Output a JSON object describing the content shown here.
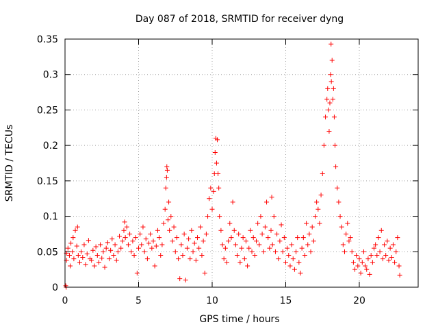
{
  "chart_data": {
    "type": "scatter",
    "title": "Day 087 of 2018, SRMTID for receiver dyng",
    "xlabel": "GPS time / hours",
    "ylabel": "SRMTID / TECUs",
    "xlim": [
      0,
      24
    ],
    "ylim": [
      0,
      0.35
    ],
    "x_ticks": [
      0,
      5,
      10,
      15,
      20
    ],
    "x_tick_labels": [
      "0",
      "5",
      "10",
      "15",
      "20"
    ],
    "y_ticks": [
      0,
      0.05,
      0.1,
      0.15,
      0.2,
      0.25,
      0.3,
      0.35
    ],
    "y_tick_labels": [
      "0",
      "0.05",
      "0.1",
      "0.15",
      "0.2",
      "0.25",
      "0.3",
      "0.35"
    ],
    "grid": true,
    "marker": "+",
    "color": "#ff0000",
    "series": [
      {
        "name": "SRMTID",
        "points": [
          [
            0.05,
            0.002
          ],
          [
            0.08,
            0.0
          ],
          [
            0.1,
            0.038
          ],
          [
            0.1,
            0.048
          ],
          [
            0.2,
            0.055
          ],
          [
            0.3,
            0.045
          ],
          [
            0.35,
            0.03
          ],
          [
            0.4,
            0.062
          ],
          [
            0.5,
            0.05
          ],
          [
            0.55,
            0.07
          ],
          [
            0.6,
            0.04
          ],
          [
            0.7,
            0.08
          ],
          [
            0.8,
            0.058
          ],
          [
            0.85,
            0.085
          ],
          [
            0.9,
            0.045
          ],
          [
            1.0,
            0.035
          ],
          [
            1.1,
            0.05
          ],
          [
            1.2,
            0.042
          ],
          [
            1.3,
            0.06
          ],
          [
            1.4,
            0.032
          ],
          [
            1.5,
            0.047
          ],
          [
            1.6,
            0.066
          ],
          [
            1.7,
            0.04
          ],
          [
            1.8,
            0.038
          ],
          [
            1.9,
            0.052
          ],
          [
            2.0,
            0.03
          ],
          [
            2.1,
            0.057
          ],
          [
            2.2,
            0.045
          ],
          [
            2.3,
            0.035
          ],
          [
            2.4,
            0.06
          ],
          [
            2.5,
            0.041
          ],
          [
            2.6,
            0.05
          ],
          [
            2.7,
            0.028
          ],
          [
            2.8,
            0.055
          ],
          [
            2.9,
            0.063
          ],
          [
            3.0,
            0.04
          ],
          [
            3.1,
            0.052
          ],
          [
            3.2,
            0.068
          ],
          [
            3.3,
            0.045
          ],
          [
            3.4,
            0.06
          ],
          [
            3.5,
            0.038
          ],
          [
            3.6,
            0.05
          ],
          [
            3.7,
            0.072
          ],
          [
            3.8,
            0.055
          ],
          [
            3.9,
            0.065
          ],
          [
            4.0,
            0.08
          ],
          [
            4.05,
            0.092
          ],
          [
            4.1,
            0.07
          ],
          [
            4.2,
            0.085
          ],
          [
            4.3,
            0.06
          ],
          [
            4.4,
            0.075
          ],
          [
            4.5,
            0.05
          ],
          [
            4.6,
            0.065
          ],
          [
            4.7,
            0.045
          ],
          [
            4.8,
            0.07
          ],
          [
            4.9,
            0.02
          ],
          [
            5.0,
            0.055
          ],
          [
            5.1,
            0.075
          ],
          [
            5.2,
            0.06
          ],
          [
            5.3,
            0.085
          ],
          [
            5.4,
            0.05
          ],
          [
            5.5,
            0.068
          ],
          [
            5.6,
            0.04
          ],
          [
            5.7,
            0.062
          ],
          [
            5.8,
            0.075
          ],
          [
            5.9,
            0.055
          ],
          [
            6.0,
            0.065
          ],
          [
            6.1,
            0.03
          ],
          [
            6.2,
            0.058
          ],
          [
            6.3,
            0.08
          ],
          [
            6.4,
            0.07
          ],
          [
            6.5,
            0.045
          ],
          [
            6.6,
            0.06
          ],
          [
            6.7,
            0.09
          ],
          [
            6.8,
            0.11
          ],
          [
            6.85,
            0.14
          ],
          [
            6.9,
            0.155
          ],
          [
            6.92,
            0.17
          ],
          [
            6.95,
            0.165
          ],
          [
            7.0,
            0.095
          ],
          [
            7.05,
            0.12
          ],
          [
            7.1,
            0.08
          ],
          [
            7.2,
            0.1
          ],
          [
            7.3,
            0.065
          ],
          [
            7.4,
            0.085
          ],
          [
            7.5,
            0.05
          ],
          [
            7.6,
            0.07
          ],
          [
            7.7,
            0.04
          ],
          [
            7.8,
            0.012
          ],
          [
            7.9,
            0.06
          ],
          [
            8.0,
            0.045
          ],
          [
            8.1,
            0.075
          ],
          [
            8.2,
            0.01
          ],
          [
            8.3,
            0.055
          ],
          [
            8.4,
            0.068
          ],
          [
            8.5,
            0.04
          ],
          [
            8.6,
            0.08
          ],
          [
            8.7,
            0.05
          ],
          [
            8.8,
            0.062
          ],
          [
            8.9,
            0.038
          ],
          [
            9.0,
            0.07
          ],
          [
            9.1,
            0.055
          ],
          [
            9.2,
            0.085
          ],
          [
            9.3,
            0.045
          ],
          [
            9.4,
            0.065
          ],
          [
            9.5,
            0.02
          ],
          [
            9.6,
            0.075
          ],
          [
            9.7,
            0.1
          ],
          [
            9.8,
            0.125
          ],
          [
            9.9,
            0.14
          ],
          [
            10.0,
            0.11
          ],
          [
            10.1,
            0.135
          ],
          [
            10.15,
            0.16
          ],
          [
            10.2,
            0.19
          ],
          [
            10.25,
            0.21
          ],
          [
            10.3,
            0.175
          ],
          [
            10.35,
            0.208
          ],
          [
            10.4,
            0.16
          ],
          [
            10.45,
            0.14
          ],
          [
            10.5,
            0.1
          ],
          [
            10.6,
            0.08
          ],
          [
            10.7,
            0.06
          ],
          [
            10.8,
            0.04
          ],
          [
            10.9,
            0.055
          ],
          [
            11.0,
            0.035
          ],
          [
            11.1,
            0.065
          ],
          [
            11.2,
            0.09
          ],
          [
            11.3,
            0.07
          ],
          [
            11.4,
            0.12
          ],
          [
            11.5,
            0.08
          ],
          [
            11.6,
            0.06
          ],
          [
            11.7,
            0.045
          ],
          [
            11.8,
            0.075
          ],
          [
            11.9,
            0.035
          ],
          [
            12.0,
            0.055
          ],
          [
            12.1,
            0.07
          ],
          [
            12.2,
            0.04
          ],
          [
            12.3,
            0.065
          ],
          [
            12.4,
            0.03
          ],
          [
            12.5,
            0.055
          ],
          [
            12.6,
            0.08
          ],
          [
            12.7,
            0.05
          ],
          [
            12.8,
            0.07
          ],
          [
            12.9,
            0.045
          ],
          [
            13.0,
            0.065
          ],
          [
            13.1,
            0.09
          ],
          [
            13.2,
            0.06
          ],
          [
            13.3,
            0.1
          ],
          [
            13.4,
            0.075
          ],
          [
            13.5,
            0.05
          ],
          [
            13.6,
            0.085
          ],
          [
            13.7,
            0.12
          ],
          [
            13.8,
            0.07
          ],
          [
            13.9,
            0.055
          ],
          [
            14.0,
            0.08
          ],
          [
            14.05,
            0.127
          ],
          [
            14.1,
            0.06
          ],
          [
            14.2,
            0.1
          ],
          [
            14.3,
            0.05
          ],
          [
            14.4,
            0.075
          ],
          [
            14.5,
            0.04
          ],
          [
            14.6,
            0.065
          ],
          [
            14.7,
            0.088
          ],
          [
            14.8,
            0.05
          ],
          [
            14.9,
            0.07
          ],
          [
            15.0,
            0.035
          ],
          [
            15.1,
            0.055
          ],
          [
            15.2,
            0.045
          ],
          [
            15.3,
            0.03
          ],
          [
            15.4,
            0.06
          ],
          [
            15.5,
            0.04
          ],
          [
            15.6,
            0.025
          ],
          [
            15.7,
            0.05
          ],
          [
            15.8,
            0.07
          ],
          [
            15.9,
            0.035
          ],
          [
            16.0,
            0.02
          ],
          [
            16.1,
            0.055
          ],
          [
            16.2,
            0.07
          ],
          [
            16.3,
            0.045
          ],
          [
            16.4,
            0.09
          ],
          [
            16.5,
            0.06
          ],
          [
            16.6,
            0.075
          ],
          [
            16.7,
            0.05
          ],
          [
            16.8,
            0.085
          ],
          [
            16.9,
            0.065
          ],
          [
            17.0,
            0.1
          ],
          [
            17.1,
            0.12
          ],
          [
            17.2,
            0.11
          ],
          [
            17.3,
            0.09
          ],
          [
            17.4,
            0.13
          ],
          [
            17.5,
            0.16
          ],
          [
            17.6,
            0.2
          ],
          [
            17.7,
            0.24
          ],
          [
            17.8,
            0.265
          ],
          [
            17.85,
            0.28
          ],
          [
            17.9,
            0.25
          ],
          [
            17.95,
            0.22
          ],
          [
            18.0,
            0.26
          ],
          [
            18.05,
            0.3
          ],
          [
            18.08,
            0.343
          ],
          [
            18.1,
            0.29
          ],
          [
            18.15,
            0.32
          ],
          [
            18.2,
            0.265
          ],
          [
            18.25,
            0.28
          ],
          [
            18.3,
            0.24
          ],
          [
            18.35,
            0.2
          ],
          [
            18.4,
            0.17
          ],
          [
            18.5,
            0.14
          ],
          [
            18.6,
            0.12
          ],
          [
            18.7,
            0.1
          ],
          [
            18.8,
            0.085
          ],
          [
            18.9,
            0.06
          ],
          [
            19.0,
            0.05
          ],
          [
            19.1,
            0.075
          ],
          [
            19.2,
            0.09
          ],
          [
            19.3,
            0.065
          ],
          [
            19.4,
            0.07
          ],
          [
            19.5,
            0.05
          ],
          [
            19.6,
            0.035
          ],
          [
            19.7,
            0.025
          ],
          [
            19.8,
            0.045
          ],
          [
            19.9,
            0.03
          ],
          [
            20.0,
            0.04
          ],
          [
            20.1,
            0.02
          ],
          [
            20.2,
            0.035
          ],
          [
            20.3,
            0.05
          ],
          [
            20.4,
            0.03
          ],
          [
            20.5,
            0.025
          ],
          [
            20.6,
            0.04
          ],
          [
            20.7,
            0.018
          ],
          [
            20.8,
            0.045
          ],
          [
            20.9,
            0.035
          ],
          [
            21.0,
            0.055
          ],
          [
            21.1,
            0.06
          ],
          [
            21.2,
            0.045
          ],
          [
            21.3,
            0.07
          ],
          [
            21.4,
            0.05
          ],
          [
            21.5,
            0.08
          ],
          [
            21.6,
            0.04
          ],
          [
            21.7,
            0.06
          ],
          [
            21.8,
            0.045
          ],
          [
            21.9,
            0.065
          ],
          [
            22.0,
            0.038
          ],
          [
            22.1,
            0.055
          ],
          [
            22.2,
            0.042
          ],
          [
            22.3,
            0.06
          ],
          [
            22.4,
            0.035
          ],
          [
            22.5,
            0.05
          ],
          [
            22.6,
            0.07
          ],
          [
            22.7,
            0.03
          ],
          [
            22.75,
            0.017
          ]
        ]
      }
    ]
  }
}
